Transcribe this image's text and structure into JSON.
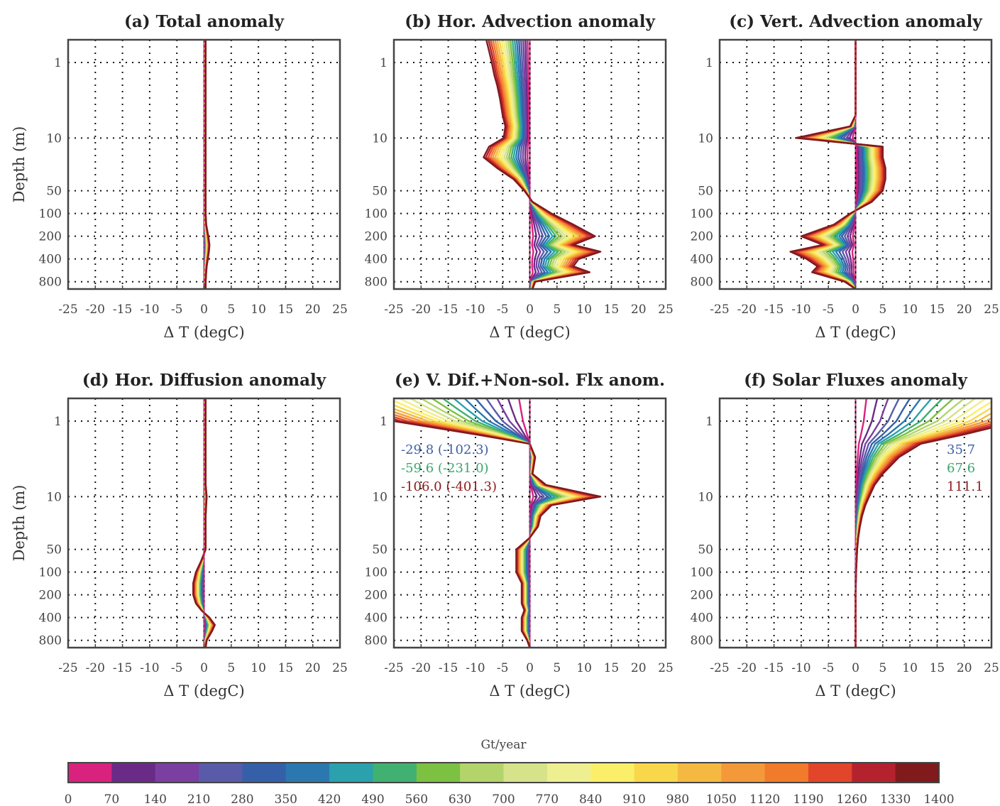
{
  "chart_data": {
    "type": "line",
    "yaxis": {
      "label": "Depth (m)",
      "scale": "log",
      "reversed": true,
      "range": [
        0.5,
        1000
      ],
      "ticks": [
        "1",
        "10",
        "50",
        "100",
        "200",
        "400",
        "800"
      ]
    },
    "xaxis": {
      "label": "Δ T (degC)",
      "range": [
        -25,
        25
      ],
      "ticks": [
        "-25",
        "-20",
        "-15",
        "-10",
        "-5",
        "0",
        "5",
        "10",
        "15",
        "20",
        "25"
      ]
    },
    "grid": true,
    "depths": [
      0.5,
      0.7,
      1,
      1.5,
      2,
      3,
      5,
      7,
      10,
      13,
      18,
      25,
      35,
      50,
      70,
      100,
      140,
      200,
      260,
      320,
      400,
      500,
      600,
      800,
      1000
    ],
    "panels": [
      {
        "title": "(a) Total anomaly",
        "profile_max_1400": [
          0.3,
          0.3,
          0.3,
          0.3,
          0.3,
          0.3,
          0.3,
          0.3,
          0.3,
          0.3,
          0.3,
          0.3,
          0.3,
          0.3,
          0.3,
          0.3,
          0.4,
          0.8,
          1.0,
          0.9,
          0.7,
          0.5,
          0.4,
          0.3,
          0.3
        ],
        "annotations": []
      },
      {
        "title": "(b) Hor. Advection anomaly",
        "profile_max_1400": [
          -8,
          -7.5,
          -7,
          -6.5,
          -6,
          -5.5,
          -5,
          -4.5,
          -4.8,
          -7.5,
          -8.5,
          -6,
          -3,
          -1,
          0.5,
          4,
          8,
          12,
          8,
          13,
          9,
          8,
          11,
          1,
          0.5
        ],
        "annotations": []
      },
      {
        "title": "(c) Vert. Advection anomaly",
        "profile_max_1400": [
          0,
          0,
          0,
          0,
          0,
          0,
          0,
          -1,
          -11,
          5,
          5,
          5.5,
          5.5,
          5,
          3,
          -1,
          -4,
          -10,
          -6,
          -12,
          -9,
          -7,
          -8,
          -2,
          0
        ],
        "annotations": []
      },
      {
        "title": "(d) Hor. Diffusion anomaly",
        "profile_max_1400": [
          0.3,
          0.3,
          0.3,
          0.3,
          0.3,
          0.3,
          0.3,
          0.3,
          0.5,
          0.4,
          0.3,
          0.3,
          0.3,
          0.3,
          -0.5,
          -1.5,
          -2,
          -2,
          -1.5,
          -0.5,
          1,
          2,
          1.5,
          0.5,
          0.3
        ],
        "annotations": []
      },
      {
        "title": "(e) V. Dif.+Non-sol. Flx anom.",
        "profile_max_1400": [
          -40,
          -33,
          -25,
          -10,
          0,
          1,
          0.5,
          3,
          13,
          4,
          2,
          1.5,
          0,
          -2.5,
          -2.5,
          -2.5,
          -1.5,
          -1.5,
          -1.5,
          -1,
          -1.5,
          -1.5,
          -1.5,
          -0.5,
          0
        ],
        "annotations": [
          {
            "text": "-29.8 (-102.3)",
            "color": "#3a5fa8"
          },
          {
            "text": "-59.6 (-231.0)",
            "color": "#3aa66a"
          },
          {
            "text": "-106.0 (-401.3)",
            "color": "#8b1a1a"
          }
        ]
      },
      {
        "title": "(f) Solar Fluxes anomaly",
        "profile_max_1400": [
          40,
          35,
          30,
          20,
          12,
          8,
          5,
          3.5,
          2.5,
          1.8,
          1.2,
          0.8,
          0.5,
          0.3,
          0.2,
          0.1,
          0.05,
          0,
          0,
          0,
          0,
          0,
          0,
          0,
          0
        ],
        "annotations": [
          {
            "text": "35.7",
            "color": "#3a5fa8"
          },
          {
            "text": "67.6",
            "color": "#3aa66a"
          },
          {
            "text": "111.1",
            "color": "#8b1a1a"
          }
        ]
      }
    ],
    "colorbar": {
      "label": "Gt/year",
      "ticks": [
        "0",
        "70",
        "140",
        "210",
        "280",
        "350",
        "420",
        "490",
        "560",
        "630",
        "700",
        "770",
        "840",
        "910",
        "980",
        "1050",
        "1120",
        "1190",
        "1260",
        "1330",
        "1400"
      ],
      "colors": [
        "#d8227e",
        "#6a2b87",
        "#7a3fa0",
        "#5a5ba8",
        "#3560a9",
        "#2b78b0",
        "#2aa1ad",
        "#40b170",
        "#7cc142",
        "#b3d46a",
        "#d6e38a",
        "#eeef90",
        "#fbef6a",
        "#f8d84a",
        "#f5b941",
        "#f4993a",
        "#f27a2b",
        "#e3452a",
        "#b4222e",
        "#801a1c"
      ]
    }
  }
}
